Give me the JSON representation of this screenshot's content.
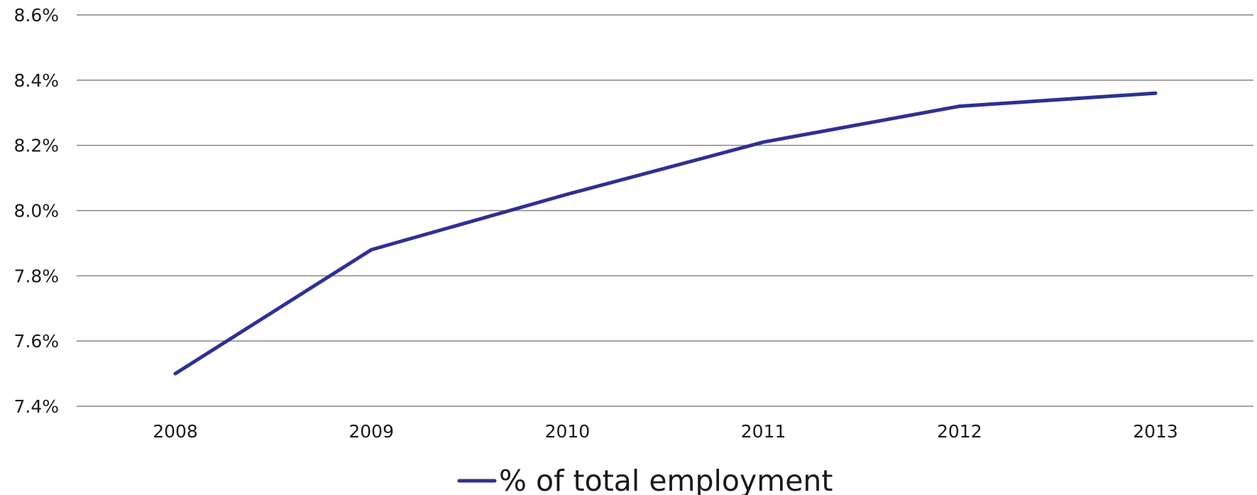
{
  "chart_data": {
    "type": "line",
    "title": "",
    "xlabel": "",
    "ylabel": "",
    "x": [
      "2008",
      "2009",
      "2010",
      "2011",
      "2012",
      "2013"
    ],
    "series": [
      {
        "name": "% of total employment",
        "values": [
          7.5,
          7.88,
          8.05,
          8.21,
          8.32,
          8.36
        ],
        "color": "#2e3192"
      }
    ],
    "ylim": [
      7.4,
      8.6
    ],
    "yticks": [
      7.4,
      7.6,
      7.8,
      8.0,
      8.2,
      8.4,
      8.6
    ],
    "ytick_labels": [
      "7.4%",
      "7.6%",
      "7.8%",
      "8.0%",
      "8.2%",
      "8.4%",
      "8.6%"
    ],
    "grid": true,
    "legend_position": "bottom-center"
  }
}
